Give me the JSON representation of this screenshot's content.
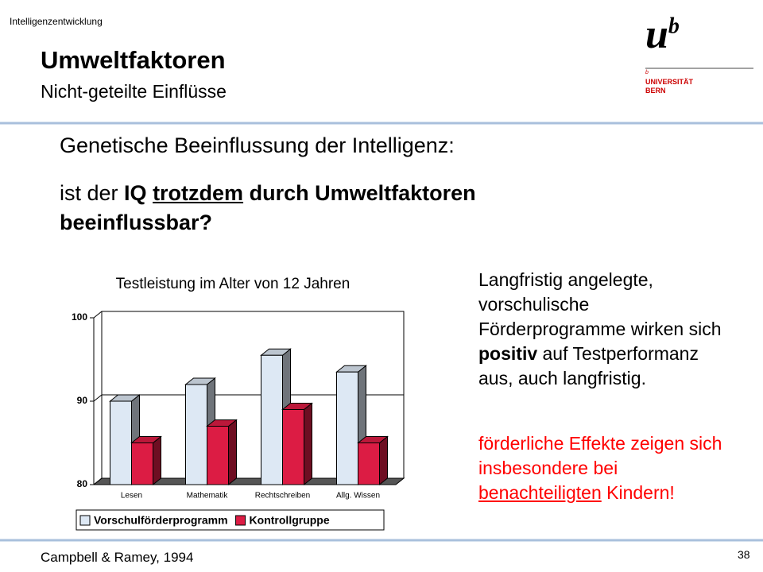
{
  "header": {
    "course": "Intelligenzentwicklung",
    "title": "Umweltfaktoren",
    "subtitle": "Nicht-geteilte Einflüsse"
  },
  "logo": {
    "mark": "u",
    "sup": "b",
    "small": "b",
    "line1": "UNIVERSITÄT",
    "line2": "BERN"
  },
  "question": {
    "line1": "Genetische Beeinflussung der Intelligenz:",
    "parts": [
      "ist der ",
      "IQ",
      "trotzdem",
      "durch Umweltfaktoren beeinflussbar?"
    ]
  },
  "finding": {
    "parts": [
      "Langfristig angelegte, vorschulische Förderprogramme wirken sich ",
      "positiv",
      " auf Testperformanz aus, auch langfristig."
    ]
  },
  "highlight": {
    "parts": [
      "förderliche Effekte zeigen sich insbesondere bei ",
      "benachteiligten",
      " Kindern!"
    ]
  },
  "footer": {
    "source": "Campbell & Ramey, 1994",
    "page": "38"
  },
  "chart_data": {
    "type": "bar3d",
    "title": "Testleistung im Alter von 12 Jahren",
    "categories": [
      "Lesen",
      "Mathematik",
      "Rechtschreiben",
      "Allg. Wissen"
    ],
    "series": [
      {
        "name": "Vorschulförderprogramm",
        "color": "#dde8f4",
        "values": [
          90,
          92,
          95.5,
          93.5
        ]
      },
      {
        "name": "Kontrollgruppe",
        "color": "#dc1c44",
        "values": [
          85,
          87,
          89,
          85
        ]
      }
    ],
    "ylim": [
      80,
      100
    ],
    "yticks": [
      80,
      90,
      100
    ],
    "grid": true
  }
}
